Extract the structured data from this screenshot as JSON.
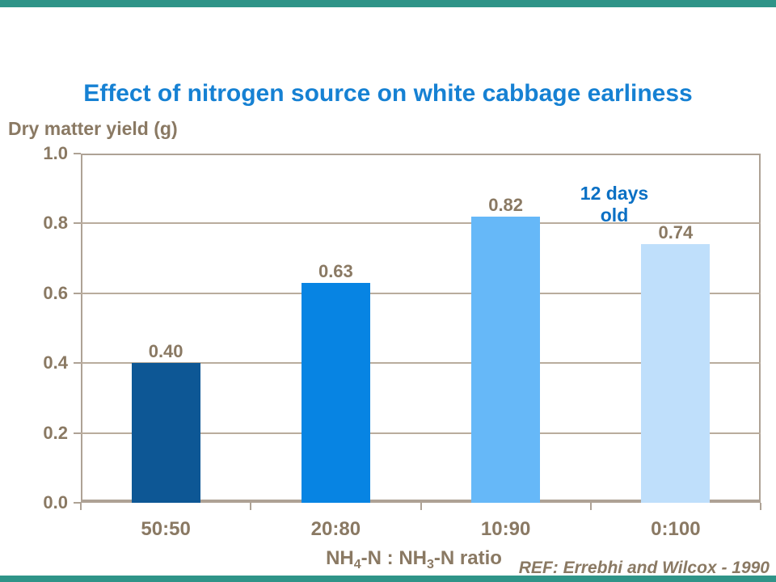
{
  "page": {
    "title": "Effect of nitrogen source on white cabbage earliness",
    "annotation": "12 days old",
    "reference": "REF: Errebhi and Wilcox - 1990"
  },
  "axis": {
    "y_title": "Dry matter yield (g)",
    "x_title": {
      "p1": "NH",
      "s1": "4",
      "p2": "-N : NH",
      "s2": "3",
      "p3": "-N ratio"
    }
  },
  "colors": {
    "title_blue": "#1681D3",
    "annotation_blue": "#0B70C4",
    "label_taupe": "#8A7963",
    "grid_line": "#B9AC9D",
    "axis_border": "#AEA295",
    "edge_strip_teal": "#2F9488",
    "background": "#FFFFFF"
  },
  "chart_data": {
    "type": "bar",
    "title": "Effect of nitrogen source on white cabbage earliness",
    "categories": [
      "50:50",
      "20:80",
      "10:90",
      "0:100"
    ],
    "values": [
      0.4,
      0.63,
      0.82,
      0.74
    ],
    "value_labels": [
      "0.40",
      "0.63",
      "0.82",
      "0.74"
    ],
    "bar_colors": [
      "#0D5795",
      "#0784E3",
      "#66B8F8",
      "#BFDFFB"
    ],
    "xlabel": "NH4-N : NH3-N ratio",
    "ylabel": "Dry matter yield (g)",
    "ylim": [
      0.0,
      1.0
    ],
    "yticks": [
      0.0,
      0.2,
      0.4,
      0.6,
      0.8,
      1.0
    ],
    "ytick_labels": [
      "0.0",
      "0.2",
      "0.4",
      "0.6",
      "0.8",
      "1.0"
    ],
    "grid": "horizontal",
    "legend_position": "none",
    "annotation": "12 days old"
  }
}
